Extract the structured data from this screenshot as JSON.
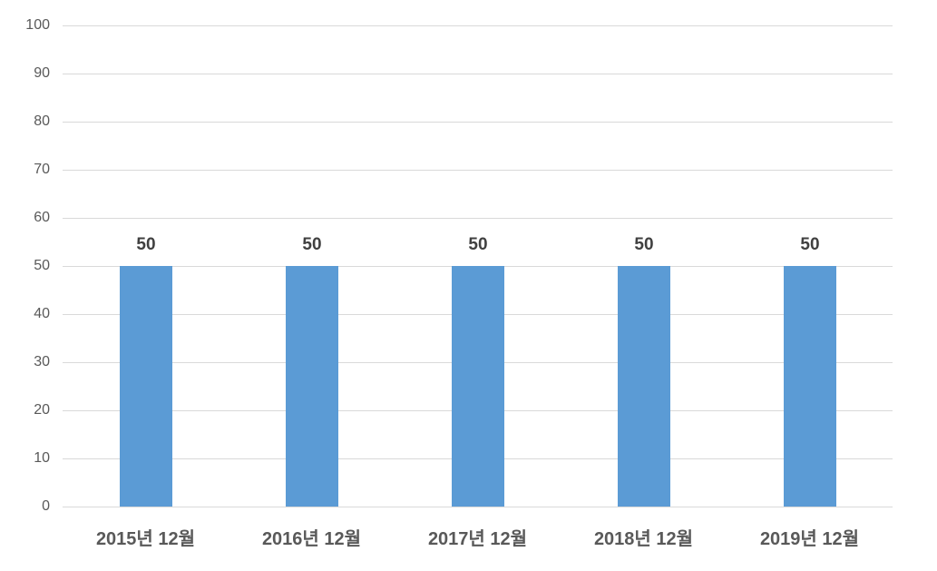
{
  "chart_data": {
    "type": "bar",
    "title": "",
    "xlabel": "",
    "ylabel": "",
    "categories": [
      "2015년 12월",
      "2016년 12월",
      "2017년 12월",
      "2018년 12월",
      "2019년 12월"
    ],
    "values": [
      50,
      50,
      50,
      50,
      50
    ],
    "data_labels": [
      "50",
      "50",
      "50",
      "50",
      "50"
    ],
    "ylim": [
      0,
      100
    ],
    "yticks": [
      0,
      10,
      20,
      30,
      40,
      50,
      60,
      70,
      80,
      90,
      100
    ],
    "grid": true,
    "legend": false,
    "colors": {
      "bar": "#5B9BD5",
      "gridline": "#D9D9D9",
      "baseline": "#D9D9D9",
      "y_tick_label": "#595959",
      "x_axis_label": "#595959",
      "data_label": "#404040",
      "background": "#FFFFFF"
    }
  }
}
